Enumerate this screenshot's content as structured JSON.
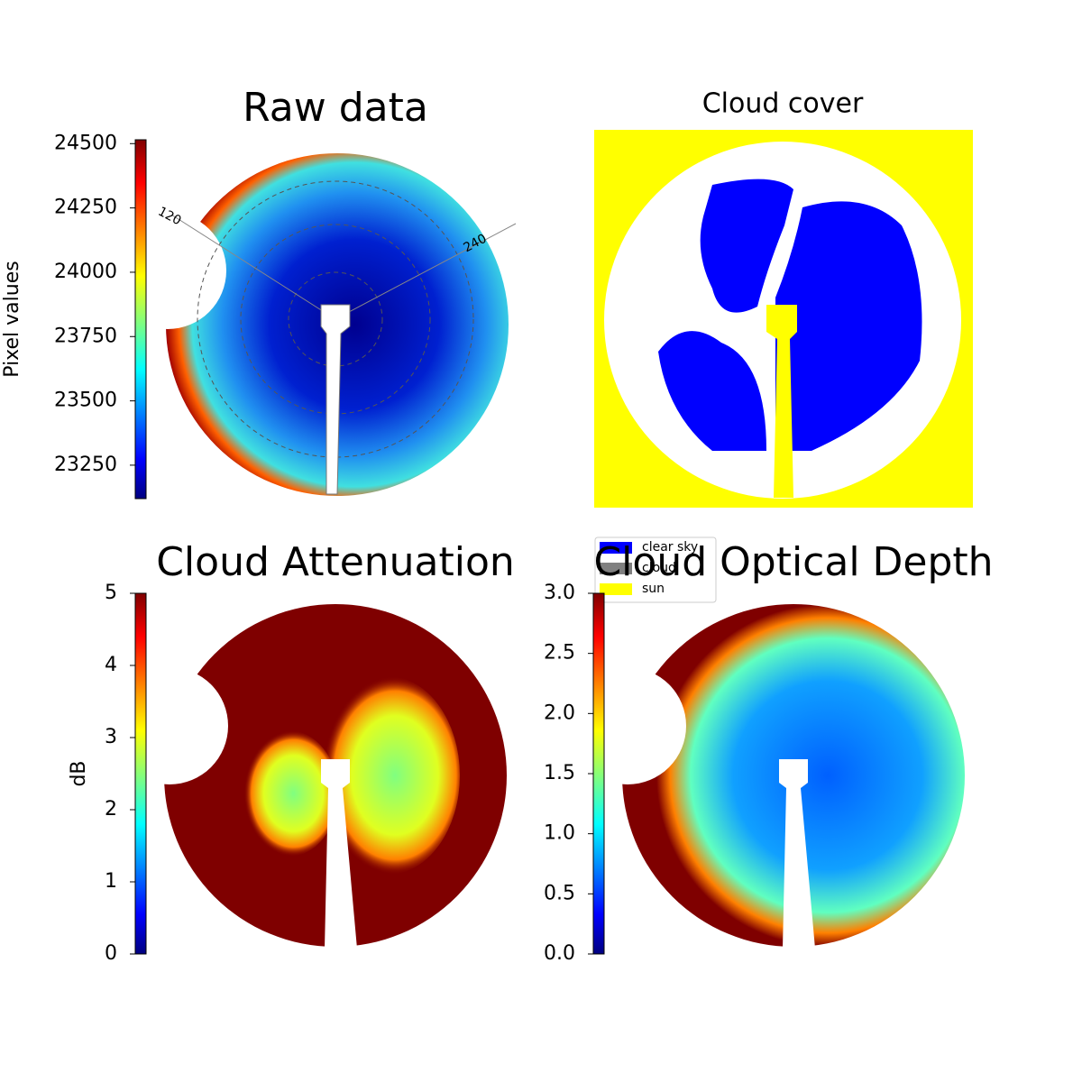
{
  "chart_data": [
    {
      "type": "image",
      "title": "Raw data",
      "colormap": "jet",
      "colorbar_label": "Pixel values",
      "clim": [
        23120,
        24515
      ],
      "cticks": [
        23250,
        23500,
        23750,
        24000,
        24250,
        24500
      ],
      "annotations": [
        "120",
        "240"
      ]
    },
    {
      "type": "image",
      "title": "Cloud cover",
      "legend_entries": [
        {
          "name": "clear sky",
          "color": "#0000ff"
        },
        {
          "name": "cloud",
          "color": "#808080"
        },
        {
          "name": "sun",
          "color": "#ffff00"
        }
      ]
    },
    {
      "type": "image",
      "title": "Cloud Attenuation",
      "colormap": "jet",
      "colorbar_label": "dB",
      "clim": [
        0,
        5
      ],
      "cticks": [
        0,
        1,
        2,
        3,
        4,
        5
      ]
    },
    {
      "type": "image",
      "title": "Cloud Optical Depth",
      "colormap": "jet",
      "clim": [
        0,
        3
      ],
      "cticks": [
        {
          "value": 0,
          "label": "0.0"
        },
        {
          "value": 0.5,
          "label": "0.5"
        },
        {
          "value": 1,
          "label": "1.0"
        },
        {
          "value": 1.5,
          "label": "1.5"
        },
        {
          "value": 2,
          "label": "2.0"
        },
        {
          "value": 2.5,
          "label": "2.5"
        },
        {
          "value": 3,
          "label": "3.0"
        }
      ]
    }
  ]
}
